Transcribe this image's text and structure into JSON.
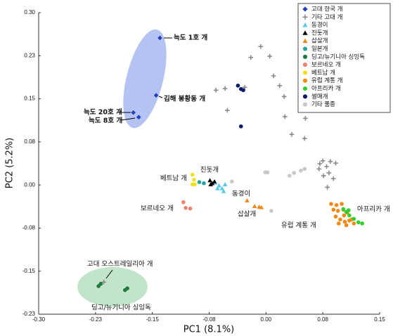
{
  "chart_data": {
    "type": "scatter",
    "x_label": "PC1 (8.1%)",
    "y_label": "PC2 (5.2%)",
    "xlim": [
      -0.3,
      0.15
    ],
    "ylim": [
      -0.225,
      0.3
    ],
    "grid": false,
    "legend": "top-right",
    "xticks": [
      {
        "value": -0.3,
        "label": "-0.30"
      },
      {
        "value": -0.225,
        "label": "-0.23"
      },
      {
        "value": -0.15,
        "label": "-0.15"
      },
      {
        "value": -0.075,
        "label": "-0.08"
      },
      {
        "value": 0,
        "label": "0.00"
      },
      {
        "value": 0.075,
        "label": "0.08"
      },
      {
        "value": 0.15,
        "label": "0.15"
      }
    ],
    "yticks": [
      {
        "value": 0.3,
        "label": "0.30"
      },
      {
        "value": 0.225,
        "label": "0.23"
      },
      {
        "value": 0.15,
        "label": "0.15"
      },
      {
        "value": 0.075,
        "label": "0.08"
      },
      {
        "value": 0,
        "label": "0.00"
      },
      {
        "value": -0.075,
        "label": "-0.08"
      },
      {
        "value": -0.15,
        "label": "-0.15"
      },
      {
        "value": -0.225,
        "label": "-0.23"
      }
    ],
    "series": [
      {
        "name": "고대 한국 개",
        "color": "#1f3fbf",
        "marker": "diamond",
        "x": [
          -0.14,
          -0.145,
          -0.175,
          -0.168
        ],
        "y": [
          0.256,
          0.156,
          0.126,
          0.118
        ]
      },
      {
        "name": "기타 고대 개",
        "color": "#8a8a8a",
        "marker": "plus",
        "x": [
          -0.007,
          -0.02,
          0.005,
          -0.054,
          -0.066,
          -0.028,
          -0.051,
          0.01,
          0.024,
          0.018,
          0.025,
          0.052,
          0.051,
          0.034,
          0.071,
          0.075,
          0.07,
          0.08,
          0.085,
          0.092,
          0.083,
          0.076,
          0.089,
          0.081,
          -0.214
        ],
        "y": [
          0.241,
          0.222,
          0.224,
          0.168,
          0.165,
          0.17,
          0.13,
          0.19,
          0.154,
          0.173,
          0.119,
          0.116,
          0.081,
          0.088,
          0.037,
          0.042,
          0.028,
          0.032,
          0.041,
          0.038,
          0.021,
          0.016,
          0.011,
          -0.004,
          -0.169
        ]
      },
      {
        "name": "동경이",
        "color": "#5bc8e8",
        "marker": "triangle",
        "x": [
          -0.067,
          -0.062,
          -0.058,
          -0.054,
          -0.056,
          -0.064
        ],
        "y": [
          0.004,
          -0.001,
          -0.006,
          0.001,
          -0.011,
          -0.006
        ]
      },
      {
        "name": "진돗개",
        "color": "#000000",
        "marker": "triangle",
        "x": [
          -0.074,
          -0.071,
          -0.068,
          -0.073
        ],
        "y": [
          0.008,
          0.003,
          0.006,
          0.001
        ]
      },
      {
        "name": "삽살개",
        "color": "#e8891c",
        "marker": "triangle",
        "x": [
          -0.025,
          -0.015,
          -0.009,
          -0.006
        ],
        "y": [
          -0.027,
          -0.037,
          -0.038,
          -0.039
        ]
      },
      {
        "name": "일본개",
        "color": "#1fa59a",
        "marker": "circle",
        "x": [
          -0.088,
          -0.082
        ],
        "y": [
          0.005,
          0.003
        ]
      },
      {
        "name": "딩고/뉴기니아 싱잉독",
        "color": "#1e7a3a",
        "marker": "circle",
        "x": [
          -0.221,
          -0.218,
          -0.186,
          -0.183
        ],
        "y": [
          -0.176,
          -0.172,
          -0.183,
          -0.18
        ]
      },
      {
        "name": "보르네오 개",
        "color": "#f08070",
        "marker": "circle",
        "x": [
          -0.109,
          -0.106,
          -0.1
        ],
        "y": [
          -0.03,
          -0.04,
          -0.041
        ]
      },
      {
        "name": "베트남 개",
        "color": "#f0e020",
        "marker": "circle",
        "x": [
          -0.097,
          -0.095,
          -0.094,
          -0.097
        ],
        "y": [
          0.018,
          0.009,
          0.001,
          0.001
        ]
      },
      {
        "name": "유럽 계통 개",
        "color": "#f08a10",
        "marker": "circle",
        "x": [
          0.086,
          0.093,
          0.1,
          0.089,
          0.095,
          0.102,
          0.107,
          0.092,
          0.098,
          0.104,
          0.11,
          0.116,
          0.096,
          0.106,
          0.113,
          0.103
        ],
        "y": [
          -0.033,
          -0.035,
          -0.033,
          -0.043,
          -0.045,
          -0.043,
          -0.048,
          -0.055,
          -0.06,
          -0.064,
          -0.062,
          -0.067,
          -0.067,
          -0.07,
          -0.06,
          -0.053
        ]
      },
      {
        "name": "아프리카 개",
        "color": "#30d030",
        "marker": "circle",
        "x": [
          0.102,
          0.106,
          0.11,
          0.116,
          0.122,
          0.127,
          0.109
        ],
        "y": [
          -0.042,
          -0.047,
          -0.053,
          -0.059,
          -0.065,
          -0.067,
          -0.044
        ]
      },
      {
        "name": "썰매개",
        "color": "#0a1a6a",
        "marker": "circle",
        "x": [
          -0.037,
          -0.033,
          -0.03,
          -0.033
        ],
        "y": [
          0.173,
          0.167,
          0.165,
          0.102
        ]
      },
      {
        "name": "기타 품종",
        "color": "#c8c8c8",
        "marker": "circle",
        "x": [
          -0.001,
          0.002,
          0.031,
          0.037,
          0.046,
          0.051,
          0.007,
          -0.045
        ],
        "y": [
          0.022,
          0.022,
          0.016,
          0.021,
          0.025,
          0.028,
          -0.045,
          0.006
        ]
      }
    ],
    "annotations": [
      "늑도 1호 개",
      "김해 봉황동 개",
      "늑도 20호 개",
      "늑도 8호 개",
      "진돗개",
      "동경이",
      "베트남 개",
      "보르네오 개",
      "삽살개",
      "유럽 계통 개",
      "아프리카 개",
      "고대 오스트레일리아 개",
      "딩고/뉴기니아 싱잉독"
    ]
  }
}
